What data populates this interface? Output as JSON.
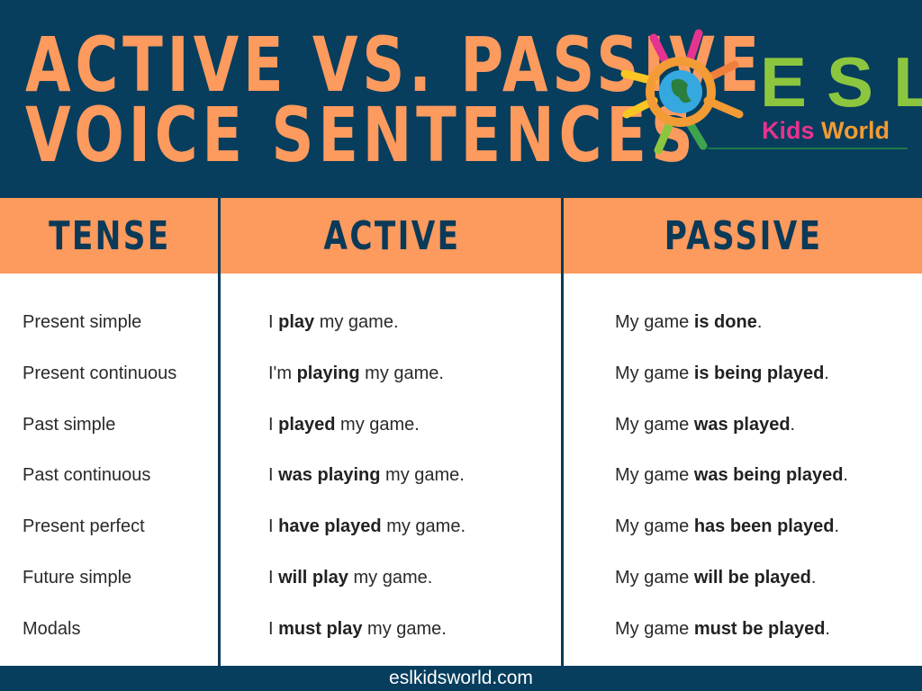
{
  "header": {
    "title_line1": "ACTIVE VS. PASSIVE",
    "title_line2": "VOICE SENTENCES",
    "logo": {
      "esl": "ESL",
      "kids": "Kids",
      "world": "World"
    }
  },
  "colors": {
    "navy": "#073d5d",
    "orange": "#fd9a5e",
    "logo_green": "#8cc63f"
  },
  "table": {
    "columns": [
      "TENSE",
      "ACTIVE",
      "PASSIVE"
    ],
    "rows": [
      {
        "tense": "Present simple",
        "active": [
          "I ",
          "play",
          " my game."
        ],
        "passive": [
          "My game ",
          "is done",
          "."
        ]
      },
      {
        "tense": "Present continuous",
        "active": [
          "I'm ",
          "playing",
          " my game."
        ],
        "passive": [
          "My game ",
          "is being played",
          "."
        ]
      },
      {
        "tense": "Past simple",
        "active": [
          "I ",
          "played",
          " my game."
        ],
        "passive": [
          "My game ",
          "was played",
          "."
        ]
      },
      {
        "tense": "Past continuous",
        "active": [
          "I ",
          "was playing",
          " my game."
        ],
        "passive": [
          "My game ",
          "was being played",
          "."
        ]
      },
      {
        "tense": "Present perfect",
        "active": [
          "I ",
          "have played",
          " my game."
        ],
        "passive": [
          "My game ",
          "has been played",
          "."
        ]
      },
      {
        "tense": "Future simple",
        "active": [
          "I ",
          "will play",
          " my game."
        ],
        "passive": [
          "My game ",
          "will be played",
          "."
        ]
      },
      {
        "tense": "Modals",
        "active": [
          "I ",
          "must play",
          " my game."
        ],
        "passive": [
          "My game ",
          "must be played",
          "."
        ]
      }
    ]
  },
  "footer": {
    "website": "eslkidsworld.com"
  }
}
